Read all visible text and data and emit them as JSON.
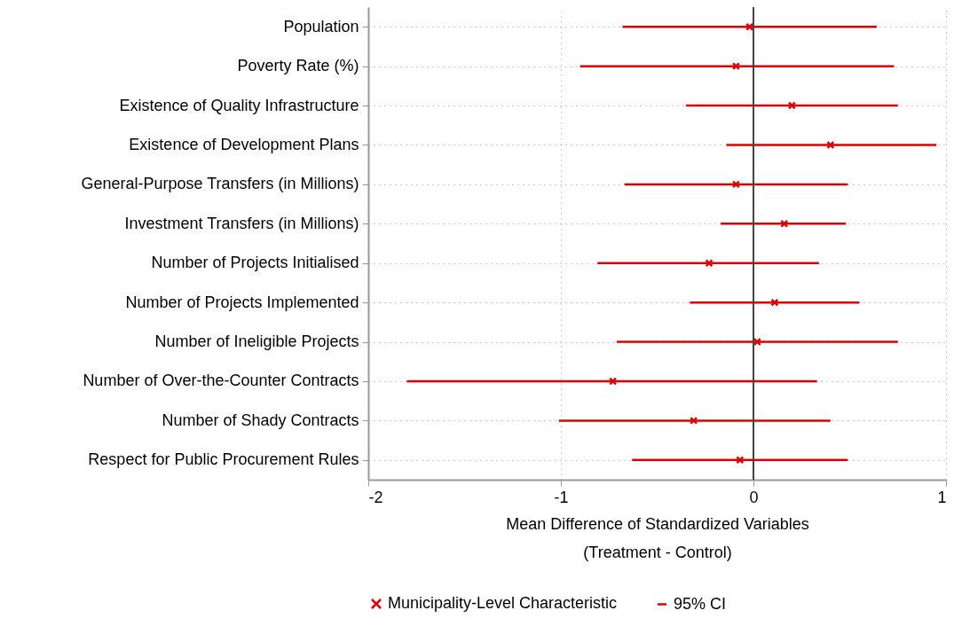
{
  "chart_data": {
    "type": "scatter",
    "orientation": "horizontal",
    "xlabel": "Mean Difference of Standardized Variables\n(Treatment - Control)",
    "categories": [
      "Population",
      "Poverty Rate (%)",
      "Existence of Quality Infrastructure",
      "Existence of Development Plans",
      "General-Purpose Transfers (in Millions)",
      "Investment Transfers (in Millions)",
      "Number of Projects Initialised",
      "Number of Projects Implemented",
      "Number of Ineligible Projects",
      "Number of Over-the-Counter Contracts",
      "Number of Shady Contracts",
      "Respect for Public Procurement Rules"
    ],
    "series": [
      {
        "name": "Municipality-Level Characteristic",
        "color": "#dc0000",
        "marker": "cross",
        "values": [
          -0.02,
          -0.09,
          0.2,
          0.4,
          -0.09,
          0.16,
          -0.23,
          0.11,
          0.02,
          -0.73,
          -0.31,
          -0.07
        ]
      },
      {
        "name": "95% CI",
        "type": "bar",
        "color": "#dc0000",
        "base": [
          -0.68,
          -0.9,
          -0.35,
          -0.14,
          -0.67,
          -0.17,
          -0.81,
          -0.33,
          -0.71,
          -1.8,
          -1.01,
          -0.63
        ],
        "values": [
          1.32,
          1.63,
          1.1,
          1.09,
          1.16,
          0.65,
          1.15,
          0.88,
          1.46,
          2.13,
          1.41,
          1.12
        ]
      }
    ],
    "xlim": [
      -2,
      1
    ],
    "xticks": [
      -2,
      -1,
      0,
      1
    ],
    "grid": true,
    "legend": "bottom",
    "ref_lines": [
      {
        "axis": "x",
        "value": 0,
        "color": "#444444"
      }
    ]
  }
}
